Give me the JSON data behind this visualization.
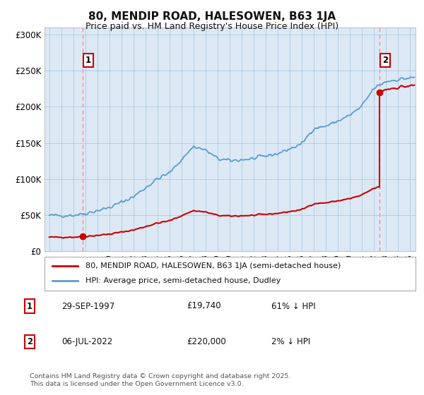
{
  "title": "80, MENDIP ROAD, HALESOWEN, B63 1JA",
  "subtitle": "Price paid vs. HM Land Registry's House Price Index (HPI)",
  "ylabel_ticks": [
    "£0",
    "£50K",
    "£100K",
    "£150K",
    "£200K",
    "£250K",
    "£300K"
  ],
  "ytick_values": [
    0,
    50000,
    100000,
    150000,
    200000,
    250000,
    300000
  ],
  "ylim": [
    0,
    310000
  ],
  "xlim_start": 1994.6,
  "xlim_end": 2025.5,
  "sale1_date": 1997.75,
  "sale1_price": 19740,
  "sale2_date": 2022.5,
  "sale2_price": 220000,
  "legend_line1": "80, MENDIP ROAD, HALESOWEN, B63 1JA (semi-detached house)",
  "legend_line2": "HPI: Average price, semi-detached house, Dudley",
  "table_row1_num": "1",
  "table_row1_date": "29-SEP-1997",
  "table_row1_price": "£19,740",
  "table_row1_hpi": "61% ↓ HPI",
  "table_row2_num": "2",
  "table_row2_date": "06-JUL-2022",
  "table_row2_price": "£220,000",
  "table_row2_hpi": "2% ↓ HPI",
  "footer": "Contains HM Land Registry data © Crown copyright and database right 2025.\nThis data is licensed under the Open Government Licence v3.0.",
  "hpi_color": "#5b9bd5",
  "price_color": "#cc0000",
  "dashed_color": "#ff8888",
  "background_color": "#ffffff",
  "chart_bg_color": "#dce9f5",
  "grid_color": "#aec8e0"
}
